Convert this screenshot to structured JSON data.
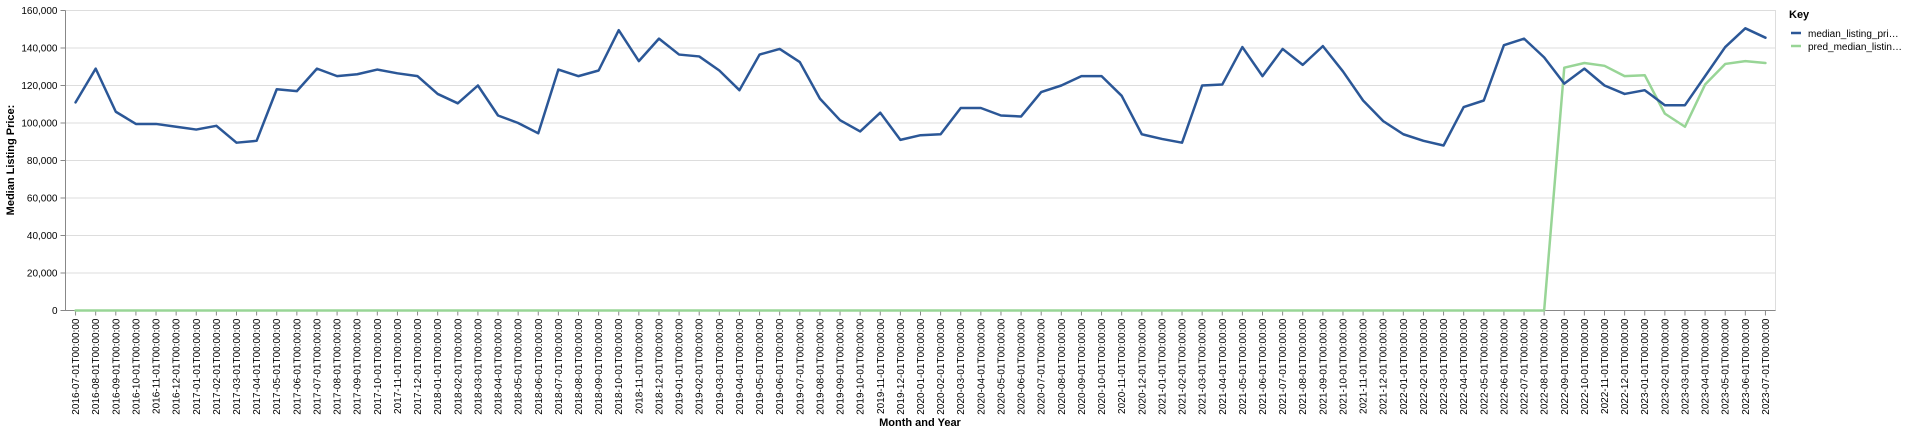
{
  "chart_data": {
    "type": "line",
    "xlabel": "Month and Year",
    "ylabel": "Median Listing Price:",
    "ylim": [
      0,
      160000
    ],
    "yticks": [
      "0",
      "20,000",
      "40,000",
      "60,000",
      "80,000",
      "100,000",
      "120,000",
      "140,000",
      "160,000"
    ],
    "grid": true,
    "legend": {
      "title": "Key",
      "position": "right",
      "entries": [
        "median_listing_pri…",
        "pred_median_listin…"
      ]
    },
    "categories": [
      "2016-07-01T00:00:00",
      "2016-08-01T00:00:00",
      "2016-09-01T00:00:00",
      "2016-10-01T00:00:00",
      "2016-11-01T00:00:00",
      "2016-12-01T00:00:00",
      "2017-01-01T00:00:00",
      "2017-02-01T00:00:00",
      "2017-03-01T00:00:00",
      "2017-04-01T00:00:00",
      "2017-05-01T00:00:00",
      "2017-06-01T00:00:00",
      "2017-07-01T00:00:00",
      "2017-08-01T00:00:00",
      "2017-09-01T00:00:00",
      "2017-10-01T00:00:00",
      "2017-11-01T00:00:00",
      "2017-12-01T00:00:00",
      "2018-01-01T00:00:00",
      "2018-02-01T00:00:00",
      "2018-03-01T00:00:00",
      "2018-04-01T00:00:00",
      "2018-05-01T00:00:00",
      "2018-06-01T00:00:00",
      "2018-07-01T00:00:00",
      "2018-08-01T00:00:00",
      "2018-09-01T00:00:00",
      "2018-10-01T00:00:00",
      "2018-11-01T00:00:00",
      "2018-12-01T00:00:00",
      "2019-01-01T00:00:00",
      "2019-02-01T00:00:00",
      "2019-03-01T00:00:00",
      "2019-04-01T00:00:00",
      "2019-05-01T00:00:00",
      "2019-06-01T00:00:00",
      "2019-07-01T00:00:00",
      "2019-08-01T00:00:00",
      "2019-09-01T00:00:00",
      "2019-10-01T00:00:00",
      "2019-11-01T00:00:00",
      "2019-12-01T00:00:00",
      "2020-01-01T00:00:00",
      "2020-02-01T00:00:00",
      "2020-03-01T00:00:00",
      "2020-04-01T00:00:00",
      "2020-05-01T00:00:00",
      "2020-06-01T00:00:00",
      "2020-07-01T00:00:00",
      "2020-08-01T00:00:00",
      "2020-09-01T00:00:00",
      "2020-10-01T00:00:00",
      "2020-11-01T00:00:00",
      "2020-12-01T00:00:00",
      "2021-01-01T00:00:00",
      "2021-02-01T00:00:00",
      "2021-03-01T00:00:00",
      "2021-04-01T00:00:00",
      "2021-05-01T00:00:00",
      "2021-06-01T00:00:00",
      "2021-07-01T00:00:00",
      "2021-08-01T00:00:00",
      "2021-09-01T00:00:00",
      "2021-10-01T00:00:00",
      "2021-11-01T00:00:00",
      "2021-12-01T00:00:00",
      "2022-01-01T00:00:00",
      "2022-02-01T00:00:00",
      "2022-03-01T00:00:00",
      "2022-04-01T00:00:00",
      "2022-05-01T00:00:00",
      "2022-06-01T00:00:00",
      "2022-07-01T00:00:00",
      "2022-08-01T00:00:00",
      "2022-09-01T00:00:00",
      "2022-10-01T00:00:00",
      "2022-11-01T00:00:00",
      "2022-12-01T00:00:00",
      "2023-01-01T00:00:00",
      "2023-02-01T00:00:00",
      "2023-03-01T00:00:00",
      "2023-04-01T00:00:00",
      "2023-05-01T00:00:00",
      "2023-06-01T00:00:00",
      "2023-07-01T00:00:00"
    ],
    "series": [
      {
        "name": "median_listing_pri…",
        "color": "#2b5797",
        "values": [
          111000,
          129000,
          106000,
          99500,
          99500,
          98000,
          96500,
          98500,
          89500,
          90500,
          118000,
          117000,
          129000,
          125000,
          126000,
          128500,
          126500,
          125000,
          115500,
          110500,
          120000,
          104000,
          100000,
          94500,
          128500,
          125000,
          128000,
          149500,
          133000,
          145000,
          136500,
          135500,
          128000,
          117500,
          136500,
          139500,
          132500,
          113000,
          101500,
          95500,
          105500,
          91000,
          93500,
          94000,
          108000,
          108000,
          104000,
          103500,
          116500,
          120000,
          125000,
          125000,
          114500,
          94000,
          91500,
          89500,
          120000,
          120500,
          140500,
          125000,
          139500,
          131000,
          141000,
          127500,
          112000,
          101000,
          94000,
          90500,
          88000,
          108500,
          112000,
          141500,
          145000,
          135000,
          121000,
          129000,
          120000,
          115500,
          117500,
          109500,
          109500,
          125000,
          140500,
          150500,
          145500
        ]
      },
      {
        "name": "pred_median_listin…",
        "color": "#98d596",
        "values": [
          0,
          0,
          0,
          0,
          0,
          0,
          0,
          0,
          0,
          0,
          0,
          0,
          0,
          0,
          0,
          0,
          0,
          0,
          0,
          0,
          0,
          0,
          0,
          0,
          0,
          0,
          0,
          0,
          0,
          0,
          0,
          0,
          0,
          0,
          0,
          0,
          0,
          0,
          0,
          0,
          0,
          0,
          0,
          0,
          0,
          0,
          0,
          0,
          0,
          0,
          0,
          0,
          0,
          0,
          0,
          0,
          0,
          0,
          0,
          0,
          0,
          0,
          0,
          0,
          0,
          0,
          0,
          0,
          0,
          0,
          0,
          0,
          0,
          0,
          129500,
          132000,
          130500,
          125000,
          125500,
          105000,
          98000,
          120500,
          131500,
          133000,
          132000
        ]
      }
    ]
  }
}
